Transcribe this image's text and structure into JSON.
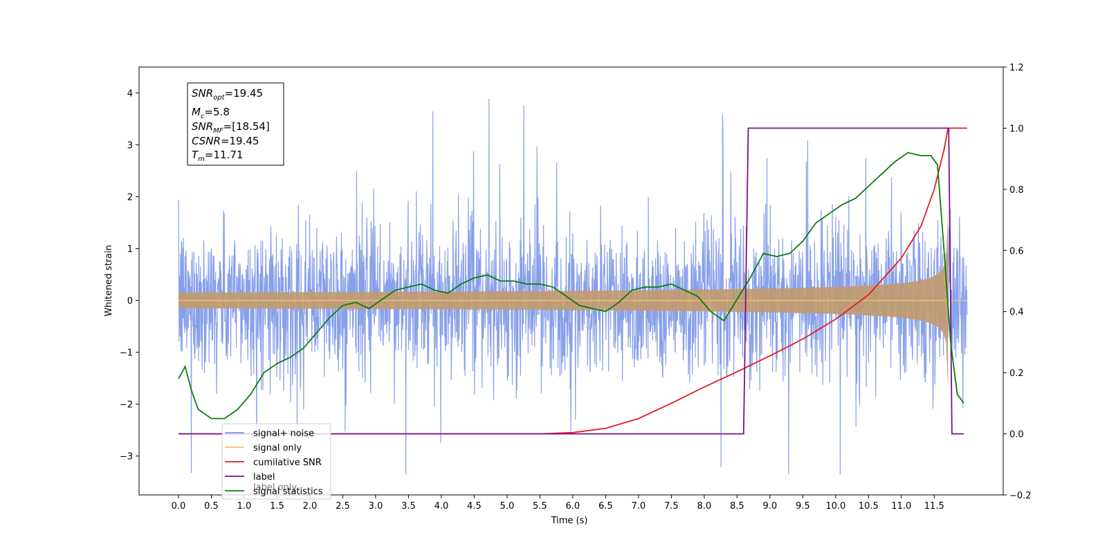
{
  "chart_data": {
    "type": "line",
    "xlabel": "Time (s)",
    "ylabel": "Whitened strain",
    "xlim": [
      -0.6,
      12.55
    ],
    "ylim": [
      -3.75,
      4.5
    ],
    "y2lim": [
      -0.2,
      1.2
    ],
    "x_ticks": [
      "0.0",
      "0.5",
      "1.0",
      "1.5",
      "2.0",
      "2.5",
      "3.0",
      "3.5",
      "4.0",
      "4.5",
      "5.0",
      "5.5",
      "6.0",
      "6.5",
      "7.0",
      "7.5",
      "8.0",
      "8.5",
      "9.0",
      "9.5",
      "10.0",
      "10.5",
      "11.0",
      "11.5"
    ],
    "y_ticks": [
      "4",
      "3",
      "2",
      "1",
      "0",
      "−1",
      "−2",
      "−3"
    ],
    "y2_ticks": [
      "1.2",
      "1.0",
      "0.8",
      "0.6",
      "0.4",
      "0.2",
      "0.0",
      "−0.2"
    ],
    "grid": false,
    "legend_position": "lower-left",
    "series": [
      {
        "name": "signal+ noise",
        "color": "#7b96e8",
        "axis": "left",
        "note": "dense whitened noise, envelope about ±1.5 with spikes to about ±3"
      },
      {
        "name": "signal only",
        "color": "#f5c16c",
        "axis": "left",
        "chirp_end_time": 11.71,
        "chirp_peak_amplitude": 1.0
      },
      {
        "name": "cumilative SNR",
        "color": "#e8191c",
        "axis": "right",
        "x": [
          0,
          5.5,
          6.0,
          6.5,
          7.0,
          7.5,
          8.0,
          8.5,
          9.0,
          9.5,
          10.0,
          10.5,
          11.0,
          11.3,
          11.5,
          11.65,
          11.71,
          12.0
        ],
        "y": [
          0,
          0,
          0.004,
          0.018,
          0.05,
          0.1,
          0.153,
          0.203,
          0.255,
          0.31,
          0.375,
          0.455,
          0.575,
          0.68,
          0.8,
          0.93,
          1.0,
          1.0
        ]
      },
      {
        "name": "label",
        "color": "#7a0f8c",
        "axis": "right",
        "x": [
          0,
          8.6,
          8.67,
          11.72,
          11.77,
          11.95
        ],
        "y": [
          0,
          0,
          1.0,
          1.0,
          0,
          0
        ]
      },
      {
        "name": "signal statistics",
        "color": "#0a7d0a",
        "axis": "right",
        "x": [
          0,
          0.1,
          0.2,
          0.3,
          0.5,
          0.7,
          0.9,
          1.1,
          1.3,
          1.5,
          1.7,
          1.9,
          2.1,
          2.3,
          2.5,
          2.7,
          2.9,
          3.1,
          3.3,
          3.5,
          3.7,
          3.9,
          4.1,
          4.3,
          4.5,
          4.7,
          4.9,
          5.1,
          5.3,
          5.5,
          5.7,
          5.9,
          6.1,
          6.3,
          6.5,
          6.7,
          6.9,
          7.1,
          7.3,
          7.5,
          7.7,
          7.9,
          8.1,
          8.3,
          8.5,
          8.7,
          8.9,
          9.1,
          9.3,
          9.5,
          9.7,
          9.9,
          10.1,
          10.3,
          10.5,
          10.7,
          10.9,
          11.1,
          11.3,
          11.45,
          11.55,
          11.65,
          11.75,
          11.85,
          11.95
        ],
        "y": [
          0.18,
          0.22,
          0.14,
          0.08,
          0.05,
          0.05,
          0.08,
          0.13,
          0.2,
          0.23,
          0.25,
          0.28,
          0.33,
          0.38,
          0.42,
          0.43,
          0.41,
          0.44,
          0.47,
          0.48,
          0.49,
          0.47,
          0.46,
          0.49,
          0.51,
          0.52,
          0.5,
          0.5,
          0.49,
          0.49,
          0.48,
          0.45,
          0.42,
          0.41,
          0.4,
          0.43,
          0.47,
          0.48,
          0.48,
          0.49,
          0.47,
          0.45,
          0.4,
          0.37,
          0.44,
          0.51,
          0.59,
          0.58,
          0.59,
          0.63,
          0.69,
          0.72,
          0.75,
          0.77,
          0.81,
          0.85,
          0.89,
          0.92,
          0.91,
          0.91,
          0.88,
          0.6,
          0.3,
          0.13,
          0.1
        ]
      }
    ]
  },
  "stats_box": {
    "snr_opt_main": "SNR",
    "snr_opt_sub": "opt",
    "snr_opt_val": "=19.45",
    "mc_main": "M",
    "mc_sub": "c",
    "mc_val": "=5.8",
    "snr_mf_main": "SNR",
    "snr_mf_sub": "MF",
    "snr_mf_val": "=[18.54]",
    "csnr_main": "CSNR",
    "csnr_val": "=19.45",
    "tm_main": "T",
    "tm_sub": "m",
    "tm_val": "=11.71"
  },
  "legend": [
    {
      "label": "signal+ noise",
      "color": "#7b96e8"
    },
    {
      "label": "signal only",
      "color": "#f5c16c"
    },
    {
      "label": "cumilative SNR",
      "color": "#e8191c"
    },
    {
      "label": "label",
      "color": "#7a0f8c"
    },
    {
      "label": "signal statistics",
      "color": "#0a7d0a"
    }
  ],
  "legend_overlap_text": "label only"
}
